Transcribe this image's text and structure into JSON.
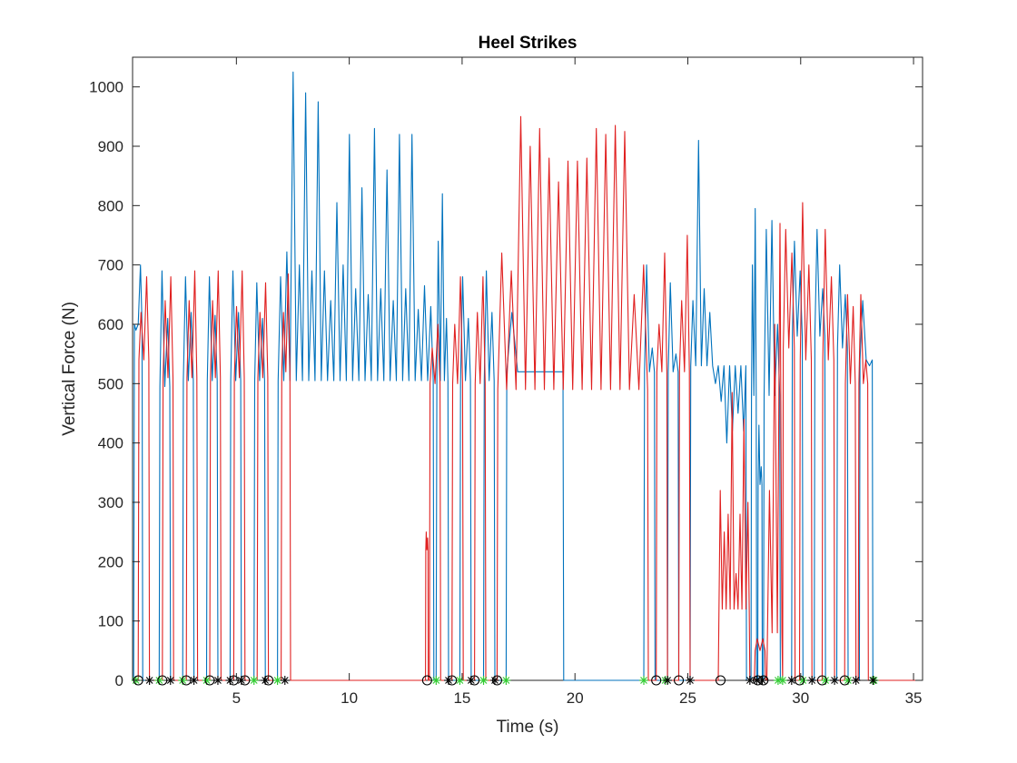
{
  "chart_data": {
    "type": "line",
    "title": "Heel Strikes",
    "xlabel": "Time (s)",
    "ylabel": "Vertical Force (N)",
    "xlim": [
      0.4,
      35.4
    ],
    "ylim": [
      0,
      1050
    ],
    "xticks": [
      5,
      10,
      15,
      20,
      25,
      30,
      35
    ],
    "yticks": [
      0,
      100,
      200,
      300,
      400,
      500,
      600,
      700,
      800,
      900,
      1000
    ],
    "grid": false,
    "legend": "none",
    "colors": {
      "blue": "#0072BD",
      "red": "#E02020",
      "marker_black": "#000000",
      "marker_green": "#33CC33"
    },
    "series": [
      {
        "color": "blue",
        "stances": [
          {
            "on": 0.45,
            "off": 0.85,
            "base": 600,
            "peaks": [
              590,
              700
            ]
          },
          {
            "on": 1.58,
            "off": 2.08,
            "base": 495,
            "peaks": [
              690,
              610
            ]
          },
          {
            "on": 2.62,
            "off": 3.12,
            "base": 505,
            "peaks": [
              680,
              620
            ]
          },
          {
            "on": 3.68,
            "off": 4.18,
            "base": 505,
            "peaks": [
              680,
              615
            ]
          },
          {
            "on": 4.72,
            "off": 5.22,
            "base": 505,
            "peaks": [
              690,
              620
            ]
          },
          {
            "on": 5.78,
            "off": 6.28,
            "base": 505,
            "peaks": [
              670,
              610
            ]
          },
          {
            "on": 6.82,
            "off": 13.75,
            "base": 505,
            "peaks": [
              680,
              722,
              1025,
              700,
              990,
              690,
              975,
              690,
              640,
              805,
              700,
              920,
              660,
              830,
              650,
              930,
              660,
              860,
              640,
              920,
              660,
              920,
              625,
              665,
              630
            ]
          },
          {
            "on": 13.85,
            "off": 14.4,
            "base": 505,
            "peaks": [
              740,
              820,
              610
            ]
          },
          {
            "on": 14.9,
            "off": 15.4,
            "base": 505,
            "peaks": [
              680,
              610
            ]
          },
          {
            "on": 15.95,
            "off": 16.45,
            "base": 505,
            "peaks": [
              690,
              620
            ]
          },
          {
            "on": 16.95,
            "off": 19.5,
            "base": 520,
            "peaks": [
              620,
              520,
              520,
              520,
              520
            ]
          },
          {
            "on": 23.05,
            "off": 23.55,
            "base": 520,
            "peaks": [
              700,
              560
            ]
          },
          {
            "on": 24.1,
            "off": 24.6,
            "base": 520,
            "peaks": [
              670,
              550
            ]
          },
          {
            "on": 25.1,
            "off": 27.6,
            "base": 530,
            "peaks": [
              640,
              910,
              660,
              620,
              500,
              470,
              400,
              420,
              450,
              420
            ]
          },
          {
            "on": 27.8,
            "off": 28.05,
            "base": 480,
            "peaks": [
              700,
              795
            ]
          },
          {
            "on": 28.1,
            "off": 28.3,
            "base": 330,
            "peaks": [
              430,
              360
            ]
          },
          {
            "on": 28.35,
            "off": 29.1,
            "base": 480,
            "peaks": [
              760,
              775,
              600
            ]
          },
          {
            "on": 29.6,
            "off": 30.1,
            "base": 580,
            "peaks": [
              740,
              690
            ]
          },
          {
            "on": 30.6,
            "off": 31.1,
            "base": 580,
            "peaks": [
              760,
              660
            ]
          },
          {
            "on": 31.6,
            "off": 32.1,
            "base": 560,
            "peaks": [
              700,
              650
            ]
          },
          {
            "on": 32.6,
            "off": 33.2,
            "base": 540,
            "peaks": [
              640,
              530
            ]
          }
        ]
      },
      {
        "color": "red",
        "stances": [
          {
            "on": 0.65,
            "off": 1.15,
            "base": 540,
            "peaks": [
              620,
              680
            ]
          },
          {
            "on": 1.72,
            "off": 2.22,
            "base": 510,
            "peaks": [
              640,
              680
            ]
          },
          {
            "on": 2.78,
            "off": 3.28,
            "base": 510,
            "peaks": [
              640,
              690
            ]
          },
          {
            "on": 3.82,
            "off": 4.32,
            "base": 510,
            "peaks": [
              640,
              690
            ]
          },
          {
            "on": 4.88,
            "off": 5.38,
            "base": 510,
            "peaks": [
              630,
              690
            ]
          },
          {
            "on": 5.92,
            "off": 6.42,
            "base": 510,
            "peaks": [
              620,
              670
            ]
          },
          {
            "on": 6.98,
            "off": 7.4,
            "base": 520,
            "peaks": [
              620,
              685
            ]
          },
          {
            "on": 13.38,
            "off": 13.5,
            "base": 220,
            "peaks": [
              250,
              240
            ]
          },
          {
            "on": 13.55,
            "off": 14.05,
            "base": 500,
            "peaks": [
              560,
              600
            ]
          },
          {
            "on": 14.55,
            "off": 15.05,
            "base": 500,
            "peaks": [
              600,
              680
            ]
          },
          {
            "on": 15.55,
            "off": 16.05,
            "base": 500,
            "peaks": [
              620,
              680
            ]
          },
          {
            "on": 16.55,
            "off": 23.25,
            "base": 490,
            "peaks": [
              720,
              690,
              950,
              900,
              930,
              880,
              840,
              875,
              875,
              880,
              930,
              920,
              935,
              925,
              650,
              700
            ]
          },
          {
            "on": 23.6,
            "off": 24.1,
            "base": 520,
            "peaks": [
              600,
              720
            ]
          },
          {
            "on": 24.6,
            "off": 25.1,
            "base": 520,
            "peaks": [
              640,
              750
            ]
          },
          {
            "on": 26.35,
            "off": 27.75,
            "base": 120,
            "peaks": [
              320,
              250,
              280,
              485,
              180,
              280,
              440,
              300
            ]
          },
          {
            "on": 27.95,
            "off": 28.45,
            "base": 50,
            "peaks": [
              70,
              70
            ]
          },
          {
            "on": 28.5,
            "off": 29.2,
            "base": 80,
            "peaks": [
              320,
              600,
              770
            ]
          },
          {
            "on": 29.2,
            "off": 29.75,
            "base": 560,
            "peaks": [
              760,
              720
            ]
          },
          {
            "on": 29.95,
            "off": 30.5,
            "base": 540,
            "peaks": [
              805,
              700
            ]
          },
          {
            "on": 30.95,
            "off": 31.5,
            "base": 540,
            "peaks": [
              760,
              680
            ]
          },
          {
            "on": 31.95,
            "off": 32.45,
            "base": 500,
            "peaks": [
              650,
              630
            ]
          },
          {
            "on": 32.55,
            "off": 33.0,
            "base": 500,
            "peaks": [
              650,
              540
            ]
          }
        ]
      }
    ],
    "markers": {
      "circle": [
        0.65,
        1.72,
        2.78,
        3.82,
        4.88,
        5.38,
        6.42,
        13.45,
        14.55,
        15.55,
        16.55,
        23.6,
        24.6,
        26.45,
        28.1,
        28.35,
        29.95,
        30.95,
        31.95
      ],
      "black_star": [
        1.15,
        2.08,
        3.12,
        4.18,
        4.72,
        5.22,
        6.28,
        7.15,
        14.4,
        15.4,
        16.45,
        24.1,
        25.1,
        27.75,
        28.05,
        28.3,
        29.6,
        30.5,
        31.5,
        32.45,
        33.2
      ],
      "green_star": [
        0.55,
        1.58,
        2.62,
        3.68,
        5.78,
        6.82,
        13.85,
        14.9,
        15.95,
        16.95,
        23.05,
        24.0,
        29.0,
        29.2,
        30.1,
        31.1,
        32.1,
        33.25
      ]
    }
  }
}
